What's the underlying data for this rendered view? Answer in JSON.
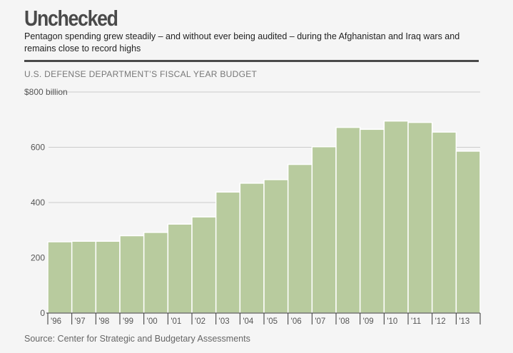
{
  "header": {
    "title": "Unchecked",
    "subtitle": "Pentagon spending grew steadily – and without ever being audited – during the Afghanistan and Iraq wars and remains close to record highs",
    "chart_label": "U.S. DEFENSE DEPARTMENT’S FISCAL YEAR BUDGET"
  },
  "footer": {
    "source": "Source: Center for Strategic and Budgetary Assessments"
  },
  "chart_data": {
    "type": "bar",
    "title": "U.S. DEFENSE DEPARTMENT’S FISCAL YEAR BUDGET",
    "xlabel": "",
    "ylabel": "",
    "categories": [
      "'96",
      "'97",
      "'98",
      "'99",
      "'00",
      "'01",
      "'02",
      "'03",
      "'04",
      "'05",
      "'06",
      "'07",
      "'08",
      "'09",
      "'10",
      "'11",
      "'12",
      "'13"
    ],
    "values": [
      258,
      260,
      260,
      280,
      292,
      322,
      348,
      438,
      470,
      483,
      538,
      602,
      672,
      665,
      695,
      690,
      655,
      586
    ],
    "ylim": [
      0,
      800
    ],
    "yticks": [
      0,
      200,
      400,
      600,
      800
    ],
    "ytick_labels": [
      "0",
      "200",
      "400",
      "600",
      "$800 billion"
    ],
    "grid": true,
    "colors": {
      "bar": "#b8cb9e",
      "bar_edge": "#ffffff",
      "grid": "#cccccc",
      "axis": "#333333"
    }
  }
}
